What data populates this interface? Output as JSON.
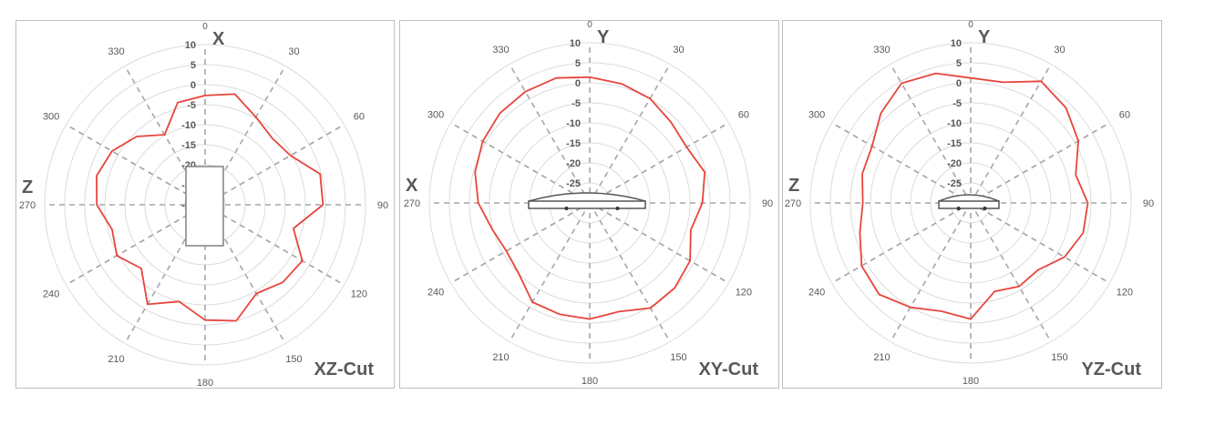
{
  "chart_data": [
    {
      "type": "polar-line",
      "title": "XZ-Cut",
      "top_axis_label": "X",
      "left_axis_label": "Z",
      "radial_ticks": [
        10,
        5,
        0,
        -5,
        -10,
        -15,
        -20,
        -25,
        -30
      ],
      "rlim": [
        -30,
        10
      ],
      "angle_ticks": [
        0,
        30,
        60,
        90,
        120,
        150,
        180,
        210,
        240,
        270,
        300,
        330
      ],
      "angles": [
        0,
        15,
        30,
        45,
        60,
        75,
        90,
        105,
        120,
        135,
        150,
        165,
        180,
        195,
        210,
        225,
        240,
        255,
        270,
        285,
        300,
        315,
        330,
        345
      ],
      "values": [
        -2.7,
        -1.4,
        -4.7,
        -6.4,
        -5.4,
        -0.3,
        -0.6,
        -7.2,
        -2.0,
        -2.6,
        -4.4,
        0.0,
        -1.2,
        -5.0,
        -1.3,
        -7.5,
        -4.6,
        -6.0,
        -3.0,
        -2.0,
        -3.2,
        -5.9,
        -9.8,
        -3.6
      ],
      "line_color": "#e8453c",
      "device": "box",
      "grid": true
    },
    {
      "type": "polar-line",
      "title": "XY-Cut",
      "top_axis_label": "Y",
      "left_axis_label": "X",
      "radial_ticks": [
        10,
        5,
        0,
        -5,
        -10,
        -15,
        -20,
        -25
      ],
      "rlim": [
        -30,
        10
      ],
      "angle_ticks": [
        0,
        30,
        60,
        90,
        120,
        150,
        180,
        210,
        240,
        270,
        300,
        330
      ],
      "angles": [
        0,
        15,
        30,
        45,
        60,
        75,
        90,
        105,
        120,
        135,
        150,
        165,
        180,
        195,
        210,
        225,
        240,
        255,
        270,
        285,
        300,
        315,
        330,
        345
      ],
      "values": [
        1.4,
        0.8,
        0.1,
        -1.4,
        -2.1,
        -0.3,
        -1.9,
        -3.9,
        -1.1,
        0.0,
        0.3,
        -1.9,
        -1.0,
        -1.2,
        -1.4,
        -5.0,
        -6.0,
        -4.8,
        -2.2,
        -0.4,
        0.8,
        1.7,
        2.1,
        2.3
      ],
      "line_color": "#e8453c",
      "device": "wide-dome",
      "grid": true
    },
    {
      "type": "polar-line",
      "title": "YZ-Cut",
      "top_axis_label": "Y",
      "left_axis_label": "Z",
      "radial_ticks": [
        10,
        5,
        0,
        -5,
        -10,
        -15,
        -20,
        -25
      ],
      "rlim": [
        -30,
        10
      ],
      "angle_ticks": [
        0,
        30,
        60,
        90,
        120,
        150,
        180,
        210,
        240,
        270,
        300,
        330
      ],
      "angles": [
        0,
        15,
        30,
        45,
        60,
        75,
        90,
        105,
        120,
        135,
        150,
        165,
        180,
        195,
        210,
        225,
        240,
        255,
        270,
        285,
        300,
        315,
        330,
        345
      ],
      "values": [
        1.2,
        1.2,
        5.1,
        3.6,
        1.0,
        -2.9,
        -0.8,
        -1.0,
        -3.0,
        -6.3,
        -5.9,
        -7.1,
        -1.0,
        -2.0,
        0.1,
        2.3,
        1.4,
        -1.4,
        -3.1,
        -2.0,
        -1.6,
        1.7,
        4.5,
        3.5
      ],
      "line_color": "#e8453c",
      "device": "narrow-dome",
      "grid": true
    }
  ]
}
